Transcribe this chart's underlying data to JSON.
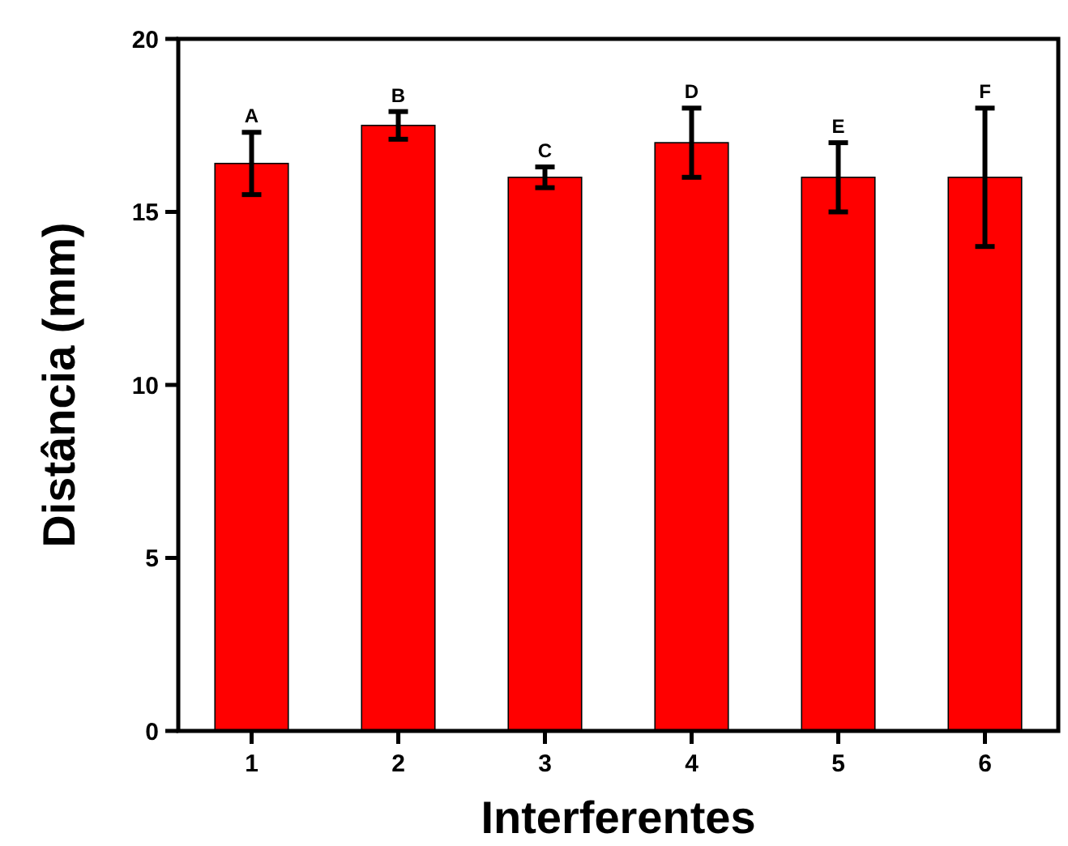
{
  "chart_data": {
    "type": "bar",
    "xlabel": "Interferentes",
    "ylabel": "Distância (mm)",
    "categories": [
      "1",
      "2",
      "3",
      "4",
      "5",
      "6"
    ],
    "values": [
      16.4,
      17.5,
      16.0,
      17.0,
      16.0,
      16.0
    ],
    "errors": [
      0.9,
      0.4,
      0.3,
      1.0,
      1.0,
      2.0
    ],
    "color": "#ff0000",
    "ylim": [
      0,
      20
    ],
    "yticks": [
      0,
      5,
      10,
      15,
      20
    ],
    "grid": false,
    "annotations": [
      {
        "text": "A",
        "x": "1",
        "y": 17.3
      },
      {
        "text": "B",
        "x": "2",
        "y": 17.9
      },
      {
        "text": "C",
        "x": "3",
        "y": 16.3
      },
      {
        "text": "D",
        "x": "4",
        "y": 18.0
      },
      {
        "text": "E",
        "x": "5",
        "y": 17.0
      },
      {
        "text": "F",
        "x": "6",
        "y": 18.0
      }
    ]
  }
}
